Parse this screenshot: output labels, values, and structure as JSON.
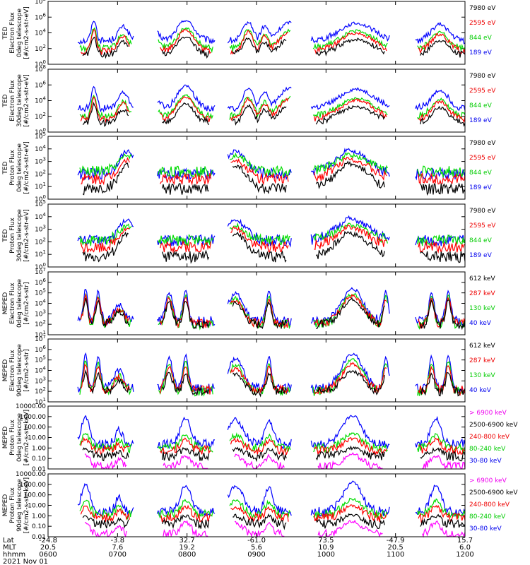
{
  "date_label": "2021 Nov 01",
  "footer": {
    "row_labels": [
      "Lat",
      "MLT",
      "hhmm"
    ],
    "ticks": [
      {
        "lat": "-24.8",
        "mlt": "20.5",
        "hhmm": "0600"
      },
      {
        "lat": "-3.8",
        "mlt": "7.6",
        "hhmm": "0700"
      },
      {
        "lat": "32.7",
        "mlt": "19.2",
        "hhmm": "0800"
      },
      {
        "lat": "-61.0",
        "mlt": "5.6",
        "hhmm": "0900"
      },
      {
        "lat": "73.5",
        "mlt": "10.9",
        "hhmm": "1000"
      },
      {
        "lat": "-47.9",
        "mlt": "20.5",
        "hhmm": "1100"
      },
      {
        "lat": "15.7",
        "mlt": "6.0",
        "hhmm": "1200"
      }
    ]
  },
  "colors": {
    "black": "#000000",
    "blue": "#0000ff",
    "red": "#ff0000",
    "green": "#00dd00",
    "magenta": "#ff00ff",
    "axis": "#000000"
  },
  "chart_data": [
    {
      "type": "line",
      "instrument": "TED",
      "ylabel": [
        "TED",
        "Electron Flux",
        "0deg telescope",
        "[#/cm2-s-str-eV]"
      ],
      "y_scale": "log",
      "ylim_exp": [
        0,
        8
      ],
      "y_tick_format": "pow10",
      "y_ticks_exp": [
        0,
        2,
        4,
        6,
        8
      ],
      "xlim_hhmm": [
        "0600",
        "1200"
      ],
      "legend": [
        {
          "label": "7980 eV",
          "color": "black"
        },
        {
          "label": "2595 eV",
          "color": "red"
        },
        {
          "label": "844 eV",
          "color": "green"
        },
        {
          "label": "189 eV",
          "color": "blue"
        }
      ],
      "profile": "ted_e",
      "series": [
        {
          "color": "blue",
          "peak_exp": 5.6,
          "floor_exp": 3.0
        },
        {
          "color": "green",
          "peak_exp": 4.6,
          "floor_exp": 2.0
        },
        {
          "color": "red",
          "peak_exp": 4.4,
          "floor_exp": 1.6
        },
        {
          "color": "black",
          "peak_exp": 3.5,
          "floor_exp": 1.2
        }
      ]
    },
    {
      "type": "line",
      "instrument": "TED",
      "ylabel": [
        "TED",
        "Electron Flux",
        "30deg telescope",
        "[#/cm2-s-str-eV]"
      ],
      "y_scale": "log",
      "ylim_exp": [
        0,
        8
      ],
      "y_tick_format": "pow10",
      "y_ticks_exp": [
        0,
        2,
        4,
        6,
        8
      ],
      "xlim_hhmm": [
        "0600",
        "1200"
      ],
      "legend": [
        {
          "label": "7980 eV",
          "color": "black"
        },
        {
          "label": "2595 eV",
          "color": "red"
        },
        {
          "label": "844 eV",
          "color": "green"
        },
        {
          "label": "189 eV",
          "color": "blue"
        }
      ],
      "profile": "ted_e",
      "series": [
        {
          "color": "blue",
          "peak_exp": 5.9,
          "floor_exp": 3.0
        },
        {
          "color": "green",
          "peak_exp": 4.7,
          "floor_exp": 2.0
        },
        {
          "color": "red",
          "peak_exp": 4.5,
          "floor_exp": 1.6
        },
        {
          "color": "black",
          "peak_exp": 3.6,
          "floor_exp": 1.2
        }
      ]
    },
    {
      "type": "line",
      "instrument": "TED",
      "ylabel": [
        "TED",
        "Proton Flux",
        "0deg telescope",
        "[#/cm2-s-str-eV]"
      ],
      "y_scale": "log",
      "ylim_exp": [
        0,
        5
      ],
      "y_tick_format": "pow10",
      "y_ticks_exp": [
        0,
        1,
        2,
        3,
        4,
        5
      ],
      "xlim_hhmm": [
        "0600",
        "1200"
      ],
      "legend": [
        {
          "label": "7980 eV",
          "color": "black"
        },
        {
          "label": "2595 eV",
          "color": "red"
        },
        {
          "label": "844 eV",
          "color": "green"
        },
        {
          "label": "189 eV",
          "color": "blue"
        }
      ],
      "profile": "ted_p",
      "series": [
        {
          "color": "blue",
          "peak_exp": 4.0,
          "floor_exp": 2.0
        },
        {
          "color": "green",
          "peak_exp": 3.6,
          "floor_exp": 2.2
        },
        {
          "color": "red",
          "peak_exp": 3.3,
          "floor_exp": 1.6
        },
        {
          "color": "black",
          "peak_exp": 2.9,
          "floor_exp": 0.8
        }
      ]
    },
    {
      "type": "line",
      "instrument": "TED",
      "ylabel": [
        "TED",
        "Proton Flux",
        "30deg telescope",
        "[#/cm2-s-str-eV]"
      ],
      "y_scale": "log",
      "ylim_exp": [
        0,
        5
      ],
      "y_tick_format": "pow10",
      "y_ticks_exp": [
        0,
        1,
        2,
        3,
        4,
        5
      ],
      "xlim_hhmm": [
        "0600",
        "1200"
      ],
      "legend": [
        {
          "label": "7980 eV",
          "color": "black"
        },
        {
          "label": "2595 eV",
          "color": "red"
        },
        {
          "label": "844 eV",
          "color": "green"
        },
        {
          "label": "189 eV",
          "color": "blue"
        }
      ],
      "profile": "ted_p",
      "series": [
        {
          "color": "blue",
          "peak_exp": 3.9,
          "floor_exp": 2.1
        },
        {
          "color": "green",
          "peak_exp": 3.4,
          "floor_exp": 2.1
        },
        {
          "color": "red",
          "peak_exp": 3.2,
          "floor_exp": 1.6
        },
        {
          "color": "black",
          "peak_exp": 2.8,
          "floor_exp": 0.8
        }
      ]
    },
    {
      "type": "line",
      "instrument": "MEPED",
      "ylabel": [
        "MEPED",
        "Electron Flux",
        "0deg telescope",
        "[#/cm2-s-str]"
      ],
      "y_scale": "log",
      "ylim_exp": [
        1,
        7
      ],
      "y_tick_format": "pow10",
      "y_ticks_exp": [
        1,
        2,
        3,
        4,
        5,
        6,
        7
      ],
      "xlim_hhmm": [
        "0600",
        "1200"
      ],
      "legend": [
        {
          "label": "612 keV",
          "color": "black"
        },
        {
          "label": "287 keV",
          "color": "red"
        },
        {
          "label": "130 keV",
          "color": "green"
        },
        {
          "label": "40 keV",
          "color": "blue"
        }
      ],
      "profile": "meped_e",
      "series": [
        {
          "color": "blue",
          "peak_exp": 5.4,
          "floor_exp": 2.3
        },
        {
          "color": "green",
          "peak_exp": 4.9,
          "floor_exp": 2.0
        },
        {
          "color": "red",
          "peak_exp": 4.7,
          "floor_exp": 2.1
        },
        {
          "color": "black",
          "peak_exp": 4.4,
          "floor_exp": 2.0
        }
      ]
    },
    {
      "type": "line",
      "instrument": "MEPED",
      "ylabel": [
        "MEPED",
        "Electron Flux",
        "90deg telescope",
        "[#/cm2-s-str]"
      ],
      "y_scale": "log",
      "ylim_exp": [
        1,
        7
      ],
      "y_tick_format": "pow10",
      "y_ticks_exp": [
        1,
        2,
        3,
        4,
        5,
        6,
        7
      ],
      "xlim_hhmm": [
        "0600",
        "1200"
      ],
      "legend": [
        {
          "label": "612 keV",
          "color": "black"
        },
        {
          "label": "287 keV",
          "color": "red"
        },
        {
          "label": "130 keV",
          "color": "green"
        },
        {
          "label": "40 keV",
          "color": "blue"
        }
      ],
      "profile": "meped_e",
      "series": [
        {
          "color": "blue",
          "peak_exp": 5.6,
          "floor_exp": 2.3
        },
        {
          "color": "green",
          "peak_exp": 5.0,
          "floor_exp": 2.0
        },
        {
          "color": "red",
          "peak_exp": 4.6,
          "floor_exp": 2.1
        },
        {
          "color": "black",
          "peak_exp": 3.9,
          "floor_exp": 2.0
        }
      ]
    },
    {
      "type": "line",
      "instrument": "MEPED",
      "ylabel": [
        "MEPED",
        "Proton Flux",
        "0deg telescope",
        "[#/cm2-s-str-keV]"
      ],
      "y_scale": "log",
      "ylim_exp": [
        -2,
        4
      ],
      "y_tick_format": "fixed2",
      "y_ticks_exp": [
        -2,
        -1,
        0,
        1,
        2,
        3,
        4
      ],
      "xlim_hhmm": [
        "0600",
        "1200"
      ],
      "legend": [
        {
          "label": "> 6900 keV",
          "color": "magenta"
        },
        {
          "label": "2500-6900 keV",
          "color": "black"
        },
        {
          "label": "240-800 keV",
          "color": "red"
        },
        {
          "label": "80-240 keV",
          "color": "green"
        },
        {
          "label": "30-80 keV",
          "color": "blue"
        }
      ],
      "profile": "meped_p",
      "series": [
        {
          "color": "blue",
          "peak_exp": 3.1,
          "floor_exp": 0.4
        },
        {
          "color": "green",
          "peak_exp": 1.4,
          "floor_exp": 0.0
        },
        {
          "color": "red",
          "peak_exp": 0.9,
          "floor_exp": -0.2
        },
        {
          "color": "black",
          "peak_exp": 0.0,
          "floor_exp": -0.8
        },
        {
          "color": "magenta",
          "peak_exp": -0.6,
          "floor_exp": -1.8
        }
      ]
    },
    {
      "type": "line",
      "instrument": "MEPED",
      "ylabel": [
        "MEPED",
        "Proton Flux",
        "90deg telescope",
        "[#/cm2-s-str-keV]"
      ],
      "y_scale": "log",
      "ylim_exp": [
        -2,
        4
      ],
      "y_tick_format": "fixed2",
      "y_ticks_exp": [
        -2,
        -1,
        0,
        1,
        2,
        3,
        4
      ],
      "xlim_hhmm": [
        "0600",
        "1200"
      ],
      "legend": [
        {
          "label": "> 6900 keV",
          "color": "magenta"
        },
        {
          "label": "2500-6900 keV",
          "color": "black"
        },
        {
          "label": "240-800 keV",
          "color": "red"
        },
        {
          "label": "80-240 keV",
          "color": "green"
        },
        {
          "label": "30-80 keV",
          "color": "blue"
        }
      ],
      "profile": "meped_p",
      "series": [
        {
          "color": "blue",
          "peak_exp": 3.2,
          "floor_exp": 0.4
        },
        {
          "color": "green",
          "peak_exp": 1.6,
          "floor_exp": 0.1
        },
        {
          "color": "red",
          "peak_exp": 1.0,
          "floor_exp": -0.2
        },
        {
          "color": "black",
          "peak_exp": 0.1,
          "floor_exp": -0.8
        },
        {
          "color": "magenta",
          "peak_exp": -0.5,
          "floor_exp": -1.8
        }
      ]
    }
  ]
}
